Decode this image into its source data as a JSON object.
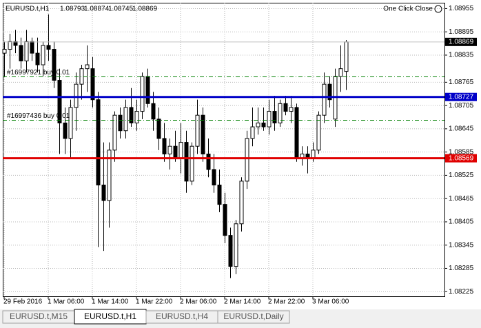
{
  "chart_data": {
    "type": "candlestick",
    "title": "EURUSD.t,H1",
    "button": "One Click Close",
    "categories": [
      "29 Feb 2016",
      null,
      null,
      null,
      null,
      null,
      null,
      null,
      "1 Mar 06:00",
      null,
      null,
      null,
      null,
      null,
      null,
      null,
      "1 Mar 14:00",
      null,
      null,
      null,
      null,
      null,
      null,
      null,
      "1 Mar 22:00",
      null,
      null,
      null,
      null,
      null,
      null,
      null,
      "2 Mar 06:00",
      null,
      null,
      null,
      null,
      null,
      null,
      null,
      "2 Mar 14:00",
      null,
      null,
      null,
      null,
      null,
      null,
      null,
      "2 Mar 22:00",
      null,
      null,
      null,
      null,
      null,
      null,
      null,
      "3 Mar 06:00",
      null,
      null,
      null,
      null,
      null,
      null
    ],
    "open": [
      1.0884,
      1.0885,
      1.0887,
      1.0886,
      1.0882,
      1.0887,
      1.0884,
      1.0881,
      1.0886,
      1.0885,
      1.0877,
      1.0866,
      1.0862,
      1.087,
      1.0876,
      1.088,
      1.088,
      1.0872,
      1.085,
      1.0846,
      1.0859,
      1.0868,
      1.0864,
      1.087,
      1.0866,
      1.0869,
      1.0878,
      1.0871,
      1.0867,
      1.0862,
      1.0858,
      1.086,
      1.0857,
      1.0861,
      1.0851,
      1.086,
      1.0868,
      1.0858,
      1.0854,
      1.085,
      1.0845,
      1.0837,
      1.0829,
      1.084,
      1.0851,
      1.0862,
      1.0865,
      1.0866,
      1.0865,
      1.0869,
      1.0866,
      1.0871,
      1.0869,
      1.087,
      1.0857,
      1.0858,
      1.0857,
      1.0859,
      1.0868,
      1.0876,
      1.0867,
      1.0878,
      1.08793
    ],
    "high": [
      1.0887,
      1.0889,
      1.089,
      1.0888,
      1.089,
      1.0888,
      1.0888,
      1.0887,
      1.0894,
      1.0887,
      1.088,
      1.087,
      1.0872,
      1.0879,
      1.0881,
      1.0886,
      1.0883,
      1.0874,
      1.0861,
      1.0861,
      1.0869,
      1.087,
      1.0872,
      1.0875,
      1.0872,
      1.0879,
      1.088,
      1.0874,
      1.087,
      1.0866,
      1.0862,
      1.0864,
      1.0866,
      1.0864,
      1.0861,
      1.0872,
      1.087,
      1.0862,
      1.0858,
      1.0854,
      1.0848,
      1.0839,
      1.0841,
      1.0852,
      1.0864,
      1.087,
      1.087,
      1.087,
      1.0872,
      1.0873,
      1.0872,
      1.0873,
      1.0873,
      1.0871,
      1.086,
      1.086,
      1.0861,
      1.0869,
      1.0879,
      1.0878,
      1.088,
      1.0886,
      1.08874
    ],
    "low": [
      1.0878,
      1.088,
      1.0884,
      1.088,
      1.0879,
      1.0882,
      1.0879,
      1.0878,
      1.0882,
      1.0875,
      1.0858,
      1.0858,
      1.0857,
      1.0864,
      1.0872,
      1.0874,
      1.087,
      1.0834,
      1.0833,
      1.0839,
      1.0856,
      1.0862,
      1.0862,
      1.0865,
      1.0864,
      1.0867,
      1.087,
      1.0864,
      1.0859,
      1.0856,
      1.0854,
      1.0856,
      1.0853,
      1.0848,
      1.085,
      1.0858,
      1.0856,
      1.0852,
      1.0848,
      1.0843,
      1.0835,
      1.0826,
      1.0827,
      1.0838,
      1.0849,
      1.086,
      1.0863,
      1.0864,
      1.0863,
      1.0864,
      1.0865,
      1.0868,
      1.0866,
      1.0856,
      1.0855,
      1.0853,
      1.0856,
      1.0858,
      1.0866,
      1.087,
      1.0865,
      1.0874,
      1.08745
    ],
    "close": [
      1.0885,
      1.0887,
      1.0886,
      1.0882,
      1.0887,
      1.0884,
      1.0881,
      1.0886,
      1.0885,
      1.0877,
      1.0866,
      1.0862,
      1.087,
      1.0876,
      1.088,
      1.0881,
      1.0872,
      1.085,
      1.0846,
      1.0859,
      1.0868,
      1.0864,
      1.087,
      1.0866,
      1.0869,
      1.0878,
      1.0871,
      1.0867,
      1.0862,
      1.0858,
      1.086,
      1.0857,
      1.0861,
      1.0851,
      1.086,
      1.0868,
      1.0858,
      1.0854,
      1.085,
      1.0845,
      1.0837,
      1.0829,
      1.084,
      1.0851,
      1.0862,
      1.0865,
      1.0866,
      1.0865,
      1.0869,
      1.0866,
      1.0871,
      1.0869,
      1.087,
      1.0857,
      1.0858,
      1.0857,
      1.0859,
      1.0868,
      1.0876,
      1.0872,
      1.0878,
      1.088,
      1.08869
    ],
    "ylim": [
      1.08213,
      1.0897
    ],
    "yticks": [
      1.08955,
      1.08895,
      1.08835,
      1.08765,
      1.08705,
      1.08645,
      1.08585,
      1.08525,
      1.08465,
      1.08405,
      1.08345,
      1.08285,
      1.08225
    ],
    "grid": true,
    "hlines": [
      {
        "value": 1.08727,
        "color": "#0000c8"
      },
      {
        "value": 1.08569,
        "color": "#e00000"
      }
    ],
    "order_lines": [
      {
        "label": "#16997921 buy 0.01",
        "value": 1.08779,
        "color": "#008000"
      },
      {
        "label": "#16997436 buy 0.01",
        "value": 1.08667,
        "color": "#008000"
      }
    ],
    "tabs": [
      "EURUSD.t,M15",
      "EURUSD.t,H1",
      "EURUSD.t,H4",
      "EURUSD.t,Daily"
    ],
    "active_tab": 1
  }
}
